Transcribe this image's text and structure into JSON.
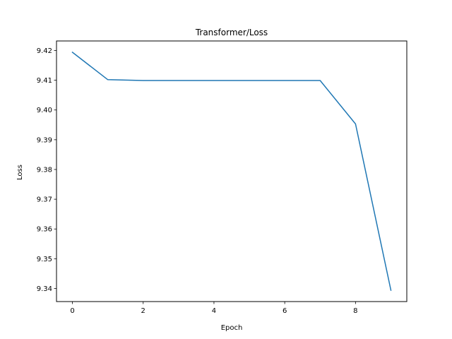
{
  "chart_data": {
    "type": "line",
    "title": "Transformer/Loss",
    "xlabel": "Epoch",
    "ylabel": "Loss",
    "xlim": [
      -0.45,
      9.45
    ],
    "ylim": [
      9.3356,
      9.4232
    ],
    "xticks": [
      0,
      2,
      4,
      6,
      8
    ],
    "xtick_labels": [
      "0",
      "2",
      "4",
      "6",
      "8"
    ],
    "yticks": [
      9.34,
      9.35,
      9.36,
      9.37,
      9.38,
      9.39,
      9.4,
      9.41,
      9.42
    ],
    "ytick_labels": [
      "9.34",
      "9.35",
      "9.36",
      "9.37",
      "9.38",
      "9.39",
      "9.40",
      "9.41",
      "9.42"
    ],
    "grid": false,
    "series": [
      {
        "color": "#1f77b4",
        "x": [
          0,
          1,
          2,
          3,
          4,
          5,
          6,
          7,
          8,
          9
        ],
        "y": [
          9.4194,
          9.4102,
          9.4099,
          9.4099,
          9.4099,
          9.4099,
          9.4099,
          9.4099,
          9.3953,
          9.3394
        ]
      }
    ]
  }
}
